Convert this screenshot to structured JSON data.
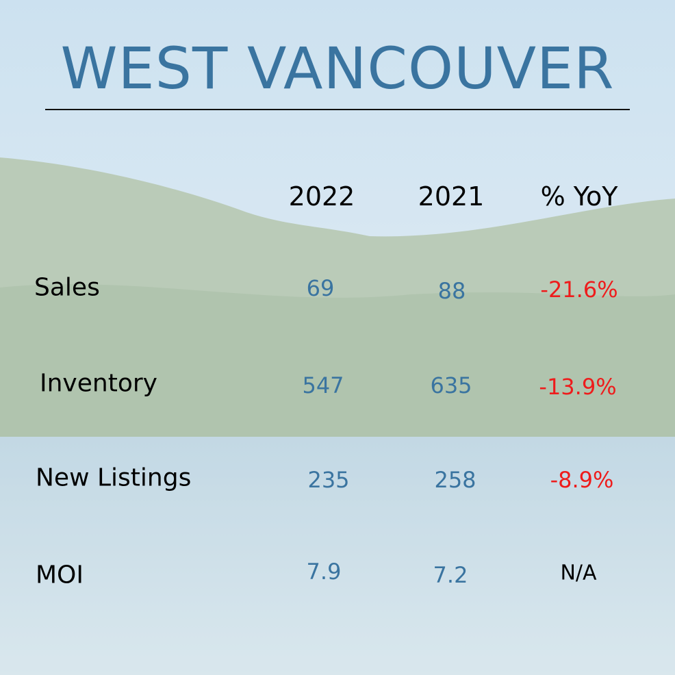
{
  "header": {
    "title": "WEST VANCOUVER"
  },
  "table": {
    "columns": [
      "2022",
      "2021",
      "% YoY"
    ],
    "rows": [
      {
        "label": "Sales",
        "cells": [
          "69",
          "88",
          "-21.6%"
        ]
      },
      {
        "label": "Inventory",
        "cells": [
          "547",
          "635",
          "-13.9%"
        ]
      },
      {
        "label": "New Listings",
        "cells": [
          "235",
          "258",
          "-8.9%"
        ]
      },
      {
        "label": "MOI",
        "cells": [
          "7.9",
          "7.2",
          "N/A"
        ]
      }
    ]
  }
}
